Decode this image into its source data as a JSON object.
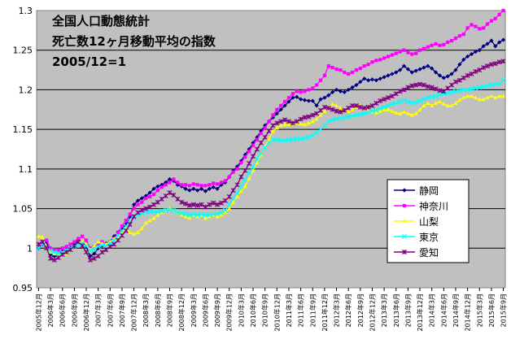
{
  "chart_data": {
    "type": "line",
    "title": [
      "全国人口動態統計",
      "死亡数12ヶ月移動平均の指数",
      "2005/12=1"
    ],
    "xlabel": "",
    "ylabel": "",
    "ylim": [
      0.95,
      1.3
    ],
    "yticks": [
      "0.95",
      "1",
      "1.05",
      "1.1",
      "1.15",
      "1.2",
      "1.25",
      "1.3"
    ],
    "grid": true,
    "legend_position": "right",
    "x": [
      "2005年12月",
      "2006年1月",
      "2006年2月",
      "2006年3月",
      "2006年4月",
      "2006年5月",
      "2006年6月",
      "2006年7月",
      "2006年8月",
      "2006年9月",
      "2006年10月",
      "2006年11月",
      "2006年12月",
      "2007年1月",
      "2007年2月",
      "2007年3月",
      "2007年4月",
      "2007年5月",
      "2007年6月",
      "2007年7月",
      "2007年8月",
      "2007年9月",
      "2007年10月",
      "2007年11月",
      "2007年12月",
      "2008年1月",
      "2008年2月",
      "2008年3月",
      "2008年4月",
      "2008年5月",
      "2008年6月",
      "2008年7月",
      "2008年8月",
      "2008年9月",
      "2008年10月",
      "2008年11月",
      "2008年12月",
      "2009年1月",
      "2009年2月",
      "2009年3月",
      "2009年4月",
      "2009年5月",
      "2009年6月",
      "2009年7月",
      "2009年8月",
      "2009年9月",
      "2009年10月",
      "2009年11月",
      "2009年12月",
      "2010年1月",
      "2010年2月",
      "2010年3月",
      "2010年4月",
      "2010年5月",
      "2010年6月",
      "2010年7月",
      "2010年8月",
      "2010年9月",
      "2010年10月",
      "2010年11月",
      "2010年12月",
      "2011年1月",
      "2011年2月",
      "2011年3月",
      "2011年4月",
      "2011年5月",
      "2011年6月",
      "2011年7月",
      "2011年8月",
      "2011年9月",
      "2011年10月",
      "2011年11月",
      "2011年12月",
      "2012年1月",
      "2012年2月",
      "2012年3月",
      "2012年4月",
      "2012年5月",
      "2012年6月",
      "2012年7月",
      "2012年8月",
      "2012年9月",
      "2012年10月",
      "2012年11月",
      "2012年12月",
      "2013年1月",
      "2013年2月",
      "2013年3月",
      "2013年4月",
      "2013年5月",
      "2013年6月",
      "2013年7月",
      "2013年8月",
      "2013年9月",
      "2013年10月",
      "2013年11月",
      "2013年12月",
      "2014年1月",
      "2014年2月",
      "2014年3月",
      "2014年4月",
      "2014年5月",
      "2014年6月",
      "2014年7月",
      "2014年8月",
      "2014年9月",
      "2014年10月",
      "2014年11月",
      "2014年12月",
      "2015年1月",
      "2015年2月",
      "2015年3月",
      "2015年4月",
      "2015年5月",
      "2015年6月",
      "2015年7月",
      "2015年8月",
      "2015年9月"
    ],
    "series": [
      {
        "name": "静岡",
        "color": "#000080",
        "marker": "diamond",
        "values": [
          1.0,
          1.005,
          1.008,
          0.992,
          0.99,
          0.994,
          0.997,
          0.996,
          1.0,
          1.005,
          1.01,
          1.008,
          1.002,
          0.99,
          0.993,
          1.0,
          1.003,
          1.006,
          1.008,
          1.015,
          1.02,
          1.025,
          1.03,
          1.04,
          1.055,
          1.06,
          1.063,
          1.066,
          1.07,
          1.075,
          1.078,
          1.08,
          1.083,
          1.087,
          1.085,
          1.08,
          1.078,
          1.075,
          1.073,
          1.075,
          1.073,
          1.075,
          1.072,
          1.075,
          1.077,
          1.075,
          1.08,
          1.083,
          1.09,
          1.098,
          1.103,
          1.11,
          1.118,
          1.125,
          1.133,
          1.14,
          1.148,
          1.155,
          1.16,
          1.165,
          1.17,
          1.175,
          1.18,
          1.185,
          1.19,
          1.191,
          1.188,
          1.187,
          1.186,
          1.186,
          1.18,
          1.188,
          1.19,
          1.193,
          1.197,
          1.2,
          1.198,
          1.197,
          1.2,
          1.203,
          1.206,
          1.21,
          1.214,
          1.212,
          1.213,
          1.212,
          1.214,
          1.216,
          1.218,
          1.22,
          1.222,
          1.225,
          1.23,
          1.226,
          1.222,
          1.224,
          1.226,
          1.228,
          1.23,
          1.227,
          1.222,
          1.218,
          1.215,
          1.217,
          1.22,
          1.225,
          1.232,
          1.238,
          1.242,
          1.245,
          1.248,
          1.25,
          1.255,
          1.258,
          1.262,
          1.255,
          1.26,
          1.263
        ]
      },
      {
        "name": "神奈川",
        "color": "#ff00ff",
        "marker": "square",
        "values": [
          1.0,
          1.008,
          1.01,
          1.0,
          0.998,
          0.997,
          1.0,
          1.002,
          1.005,
          1.008,
          1.012,
          1.015,
          1.01,
          1.0,
          1.002,
          1.005,
          1.008,
          1.005,
          1.008,
          1.012,
          1.02,
          1.028,
          1.035,
          1.043,
          1.05,
          1.055,
          1.058,
          1.063,
          1.065,
          1.068,
          1.073,
          1.077,
          1.08,
          1.083,
          1.087,
          1.083,
          1.08,
          1.08,
          1.079,
          1.081,
          1.08,
          1.079,
          1.079,
          1.08,
          1.082,
          1.081,
          1.083,
          1.085,
          1.09,
          1.096,
          1.1,
          1.108,
          1.115,
          1.122,
          1.13,
          1.137,
          1.145,
          1.152,
          1.16,
          1.168,
          1.175,
          1.18,
          1.185,
          1.19,
          1.195,
          1.198,
          1.197,
          1.198,
          1.2,
          1.202,
          1.206,
          1.212,
          1.218,
          1.23,
          1.228,
          1.226,
          1.225,
          1.222,
          1.22,
          1.222,
          1.225,
          1.227,
          1.23,
          1.232,
          1.235,
          1.237,
          1.238,
          1.24,
          1.242,
          1.244,
          1.246,
          1.248,
          1.25,
          1.247,
          1.245,
          1.246,
          1.25,
          1.252,
          1.254,
          1.256,
          1.258,
          1.256,
          1.257,
          1.26,
          1.262,
          1.265,
          1.268,
          1.27,
          1.278,
          1.282,
          1.28,
          1.277,
          1.278,
          1.283,
          1.287,
          1.29,
          1.295,
          1.3
        ]
      },
      {
        "name": "山梨",
        "color": "#ffff00",
        "marker": "triangle",
        "values": [
          1.015,
          1.014,
          1.0,
          0.995,
          0.993,
          0.993,
          0.992,
          0.993,
          0.997,
          1.003,
          1.007,
          1.009,
          1.005,
          0.998,
          1.003,
          1.008,
          1.006,
          1.005,
          1.008,
          1.012,
          1.015,
          1.02,
          1.025,
          1.02,
          1.018,
          1.02,
          1.025,
          1.032,
          1.035,
          1.038,
          1.042,
          1.045,
          1.048,
          1.05,
          1.048,
          1.045,
          1.042,
          1.04,
          1.038,
          1.042,
          1.04,
          1.042,
          1.038,
          1.04,
          1.042,
          1.04,
          1.042,
          1.045,
          1.05,
          1.058,
          1.065,
          1.072,
          1.078,
          1.088,
          1.098,
          1.108,
          1.118,
          1.128,
          1.138,
          1.148,
          1.152,
          1.155,
          1.156,
          1.156,
          1.157,
          1.158,
          1.157,
          1.156,
          1.158,
          1.16,
          1.163,
          1.168,
          1.173,
          1.178,
          1.182,
          1.18,
          1.177,
          1.175,
          1.173,
          1.175,
          1.178,
          1.18,
          1.177,
          1.174,
          1.172,
          1.171,
          1.173,
          1.175,
          1.175,
          1.173,
          1.171,
          1.17,
          1.172,
          1.17,
          1.168,
          1.17,
          1.175,
          1.18,
          1.183,
          1.18,
          1.183,
          1.185,
          1.182,
          1.18,
          1.18,
          1.183,
          1.187,
          1.19,
          1.192,
          1.192,
          1.19,
          1.188,
          1.188,
          1.19,
          1.192,
          1.19,
          1.192,
          1.192
        ]
      },
      {
        "name": "東京",
        "color": "#00ffff",
        "marker": "x",
        "values": [
          1.0,
          1.005,
          1.0,
          0.997,
          0.995,
          0.994,
          0.995,
          0.997,
          1.0,
          1.002,
          1.004,
          1.005,
          1.003,
          0.997,
          0.999,
          1.002,
          1.004,
          1.003,
          1.006,
          1.01,
          1.016,
          1.022,
          1.028,
          1.034,
          1.038,
          1.042,
          1.044,
          1.046,
          1.046,
          1.046,
          1.046,
          1.047,
          1.048,
          1.049,
          1.048,
          1.045,
          1.044,
          1.043,
          1.042,
          1.043,
          1.042,
          1.043,
          1.042,
          1.042,
          1.043,
          1.043,
          1.045,
          1.048,
          1.055,
          1.063,
          1.07,
          1.078,
          1.087,
          1.095,
          1.103,
          1.112,
          1.12,
          1.127,
          1.133,
          1.137,
          1.137,
          1.136,
          1.136,
          1.137,
          1.137,
          1.138,
          1.138,
          1.139,
          1.14,
          1.143,
          1.146,
          1.15,
          1.155,
          1.16,
          1.162,
          1.163,
          1.164,
          1.165,
          1.166,
          1.167,
          1.168,
          1.169,
          1.17,
          1.172,
          1.173,
          1.174,
          1.176,
          1.178,
          1.18,
          1.182,
          1.183,
          1.185,
          1.187,
          1.185,
          1.183,
          1.184,
          1.186,
          1.188,
          1.19,
          1.191,
          1.192,
          1.194,
          1.195,
          1.196,
          1.197,
          1.198,
          1.199,
          1.2,
          1.2,
          1.201,
          1.202,
          1.203,
          1.204,
          1.205,
          1.206,
          1.207,
          1.208,
          1.212
        ]
      },
      {
        "name": "愛知",
        "color": "#800080",
        "marker": "star",
        "values": [
          1.005,
          1.008,
          1.0,
          0.987,
          0.985,
          0.988,
          0.992,
          0.995,
          0.998,
          1.003,
          1.008,
          1.003,
          0.995,
          0.985,
          0.987,
          0.99,
          0.995,
          0.998,
          1.002,
          1.005,
          1.01,
          1.016,
          1.022,
          1.03,
          1.04,
          1.045,
          1.048,
          1.05,
          1.052,
          1.055,
          1.058,
          1.062,
          1.066,
          1.07,
          1.067,
          1.062,
          1.058,
          1.056,
          1.054,
          1.055,
          1.054,
          1.055,
          1.052,
          1.055,
          1.057,
          1.055,
          1.057,
          1.06,
          1.065,
          1.073,
          1.08,
          1.09,
          1.098,
          1.107,
          1.116,
          1.125,
          1.133,
          1.14,
          1.148,
          1.155,
          1.158,
          1.16,
          1.162,
          1.16,
          1.158,
          1.16,
          1.163,
          1.165,
          1.166,
          1.168,
          1.17,
          1.174,
          1.178,
          1.177,
          1.175,
          1.173,
          1.172,
          1.174,
          1.177,
          1.18,
          1.18,
          1.178,
          1.177,
          1.178,
          1.18,
          1.183,
          1.186,
          1.188,
          1.19,
          1.192,
          1.195,
          1.198,
          1.2,
          1.203,
          1.205,
          1.206,
          1.207,
          1.206,
          1.204,
          1.203,
          1.201,
          1.199,
          1.198,
          1.202,
          1.206,
          1.21,
          1.212,
          1.215,
          1.218,
          1.22,
          1.223,
          1.225,
          1.228,
          1.23,
          1.232,
          1.233,
          1.235,
          1.236
        ]
      }
    ]
  }
}
